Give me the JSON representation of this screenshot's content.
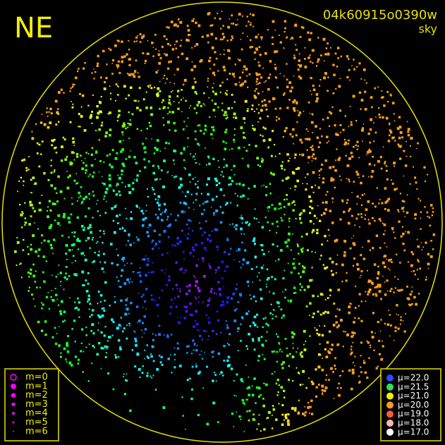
{
  "corner_label": "NE",
  "image_id": "04k60915o0390w",
  "image_kind": "sky",
  "magnitude_legend": [
    "m=0",
    "m=1",
    "m=2",
    "m=3",
    "m=4",
    "m=5",
    "m=6"
  ],
  "sky_legend": [
    {
      "label": "μ=22.0",
      "color": "#2f4bff"
    },
    {
      "label": "μ=21.5",
      "color": "#2ee05a"
    },
    {
      "label": "μ=21.0",
      "color": "#f2f000"
    },
    {
      "label": "μ=20.0",
      "color": "#ff9a20"
    },
    {
      "label": "μ=19.0",
      "color": "#ff5a3a"
    },
    {
      "label": "μ=18.0",
      "color": "#ffb4b4"
    },
    {
      "label": "μ=17.0",
      "color": "#ffffff"
    }
  ]
}
